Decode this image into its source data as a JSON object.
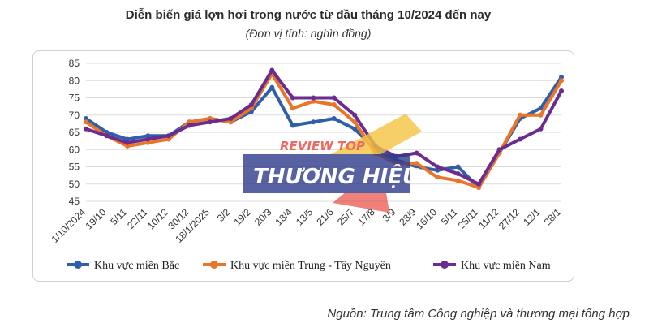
{
  "chart_data": {
    "type": "line",
    "title": "Diễn biến giá lợn hơi trong nước từ đầu tháng 10/2024 đến nay",
    "subtitle": "(Đơn vị tính: nghìn đồng)",
    "ylim": [
      45,
      85
    ],
    "yticks": [
      45,
      50,
      55,
      60,
      65,
      70,
      75,
      80,
      85
    ],
    "grid": true,
    "legend_position": "bottom",
    "x": [
      "1/10/2024",
      "19/10",
      "5/11",
      "22/11",
      "10/12",
      "30/12",
      "18/1/2025",
      "3/2",
      "19/2",
      "20/3",
      "18/4",
      "13/5",
      "21/6",
      "25/7",
      "17/8",
      "3/9",
      "28/9",
      "16/10",
      "5/11",
      "25/11",
      "11/12",
      "27/12",
      "12/1",
      "28/1"
    ],
    "series": [
      {
        "name": "Khu vực miền Bắc",
        "color": "#2e5fa8",
        "values": [
          69,
          65,
          63,
          64,
          64,
          68,
          69,
          68,
          71,
          78,
          67,
          68,
          69,
          66,
          60,
          57,
          55,
          54,
          55,
          49,
          59,
          69,
          72,
          81
        ]
      },
      {
        "name": "Khu vực miền Trung - Tây Nguyên",
        "color": "#ea7428",
        "values": [
          68,
          64,
          61,
          62,
          63,
          68,
          69,
          68,
          72,
          82,
          72,
          74,
          73,
          68,
          59,
          56,
          56,
          52,
          51,
          49,
          59,
          70,
          70,
          80
        ]
      },
      {
        "name": "Khu vực miền Nam",
        "color": "#6a2c8e",
        "values": [
          66,
          64,
          62,
          63,
          64,
          67,
          68,
          69,
          73,
          83,
          75,
          75,
          75,
          70,
          61,
          58,
          59,
          55,
          53,
          50,
          60,
          63,
          66,
          77
        ]
      }
    ],
    "source": "Nguồn: Trung tâm Công nghiệp và thương mại tổng hợp"
  },
  "watermark": {
    "line1": "REVIEW TOP",
    "line2": "THƯƠNG HIỆU"
  }
}
